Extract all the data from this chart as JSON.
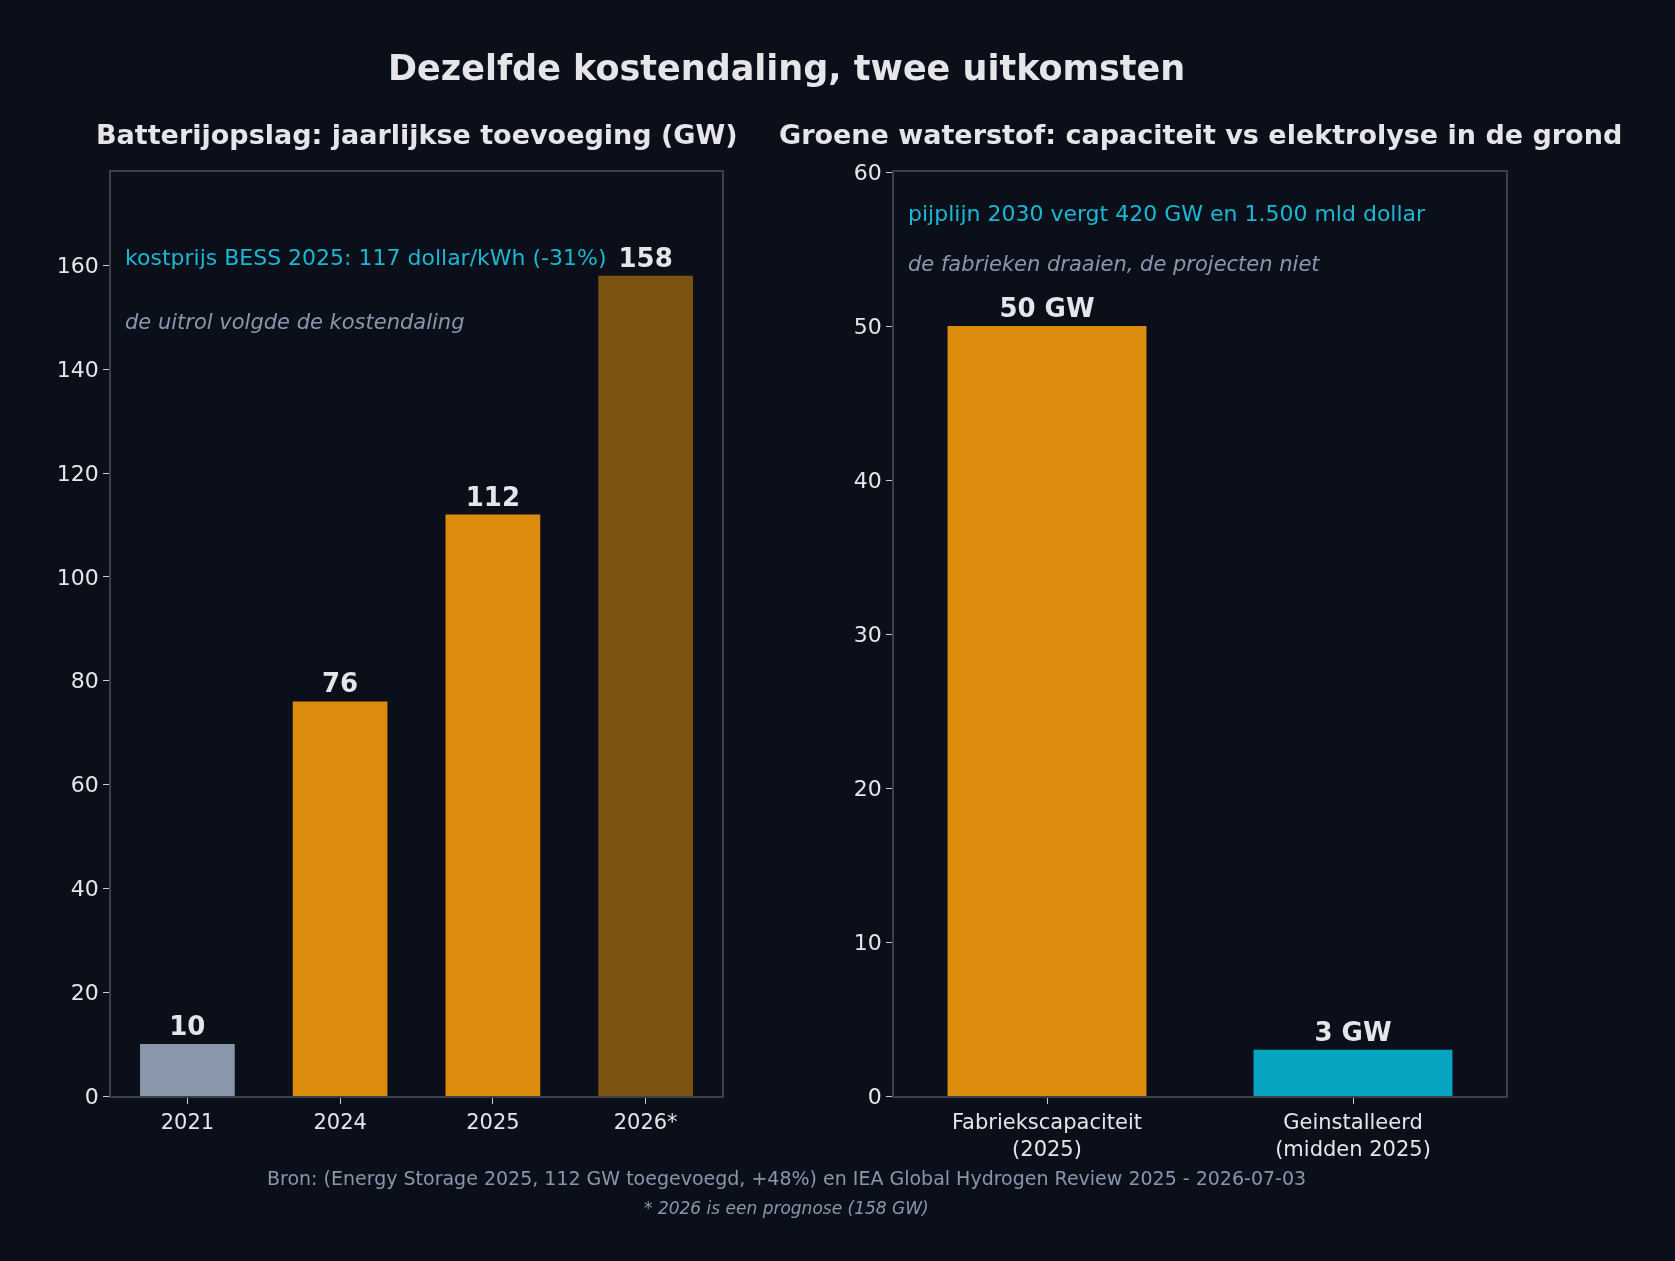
{
  "chart_data": [
    {
      "type": "bar",
      "title": "Dezelfde kostendaling, twee uitkomsten",
      "subtitle": "Batterijopslag: jaarlijkse toevoeging (GW)",
      "categories": [
        "2021",
        "2024",
        "2025",
        "2026*"
      ],
      "values": [
        10,
        76,
        112,
        158
      ],
      "colors": [
        "#8a96ab",
        "#dc8c0c",
        "#dc8c0c",
        "#7b5412"
      ],
      "ylim": [
        0,
        178
      ],
      "yticks": [
        0,
        20,
        40,
        60,
        80,
        100,
        120,
        140,
        160
      ],
      "data_labels": true,
      "annotations": [
        "kostprijs BESS 2025: 117 dollar/kWh (-31%)",
        "de uitrol volgde de kostendaling",
        "Bron: (Energy Storage 2025, 112 GW toegevoegd, +48%) en IEA Global Hydrogen Review 2025 - 2026-07-03",
        "* 2026 is een prognose (158 GW)"
      ]
    },
    {
      "type": "bar",
      "subtitle": "Groene waterstof: capaciteit vs elektrolyse in de grond",
      "categories": [
        "Fabriekscapaciteit\n(2025)",
        "Geinstalleerd\n(midden 2025)"
      ],
      "values": [
        50,
        3
      ],
      "colors": [
        "#dc8c0c",
        "#08a5c3"
      ],
      "value_labels": [
        "50 GW",
        "3 GW"
      ],
      "ylim": [
        0,
        60
      ],
      "yticks": [
        0,
        10,
        20,
        30,
        40,
        50,
        60
      ],
      "annotations": [
        "pijplijn 2030 vergt 420 GW en 1.500 mld dollar",
        "de fabrieken draaien, de projecten niet"
      ]
    }
  ]
}
